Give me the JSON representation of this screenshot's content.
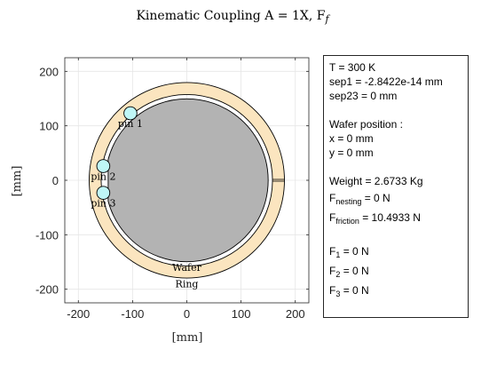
{
  "chart_data": {
    "type": "scatter",
    "title": "Kinematic Coupling A = 1X, F",
    "title_var": "f",
    "xlabel": "[mm]",
    "ylabel": "[mm]",
    "xlim": [
      -225,
      225
    ],
    "ylim": [
      -225,
      225
    ],
    "xticks": [
      -200,
      -100,
      0,
      100,
      200
    ],
    "yticks": [
      -200,
      -100,
      0,
      100,
      200
    ],
    "grid": true,
    "colors": {
      "ring_fill": "#fbe5bf",
      "wafer_fill": "#b3b3b3",
      "pin_fill": "#bff7f7",
      "outline": "#000000",
      "grid": "#e6e6e6",
      "axis": "#262626"
    },
    "ring": {
      "center": [
        0,
        0
      ],
      "outer_radius": 180,
      "inner_radius": 158,
      "notch_angle_deg": 0,
      "label": "Ring"
    },
    "wafer": {
      "center": [
        0,
        0
      ],
      "radius": 150,
      "label": "Wafer"
    },
    "pins": [
      {
        "label": "pin 1",
        "x": -104,
        "y": 123,
        "r": 12
      },
      {
        "label": "pin 2",
        "x": -154,
        "y": 26,
        "r": 12
      },
      {
        "label": "pin 3",
        "x": -154,
        "y": -23,
        "r": 12
      }
    ]
  },
  "info": {
    "T": "T = 300 K",
    "sep1": "sep1 = -2.8422e-14  mm",
    "sep23": "sep23 = 0 mm",
    "wafer_position": "Wafer position :",
    "x": "x = 0 mm",
    "y": "y = 0 mm",
    "weight": "Weight = 2.6733 Kg",
    "f_nesting_label": "F",
    "f_nesting_sub": "nesting",
    "f_nesting_value": " = 0 N",
    "f_friction_label": "F",
    "f_friction_sub": "friction",
    "f_friction_value": " = 10.4933 N",
    "f1_label": "F",
    "f1_sub": "1",
    "f1_value": " = 0 N",
    "f2_label": "F",
    "f2_sub": "2",
    "f2_value": " = 0 N",
    "f3_label": "F",
    "f3_sub": "3",
    "f3_value": " = 0 N"
  }
}
